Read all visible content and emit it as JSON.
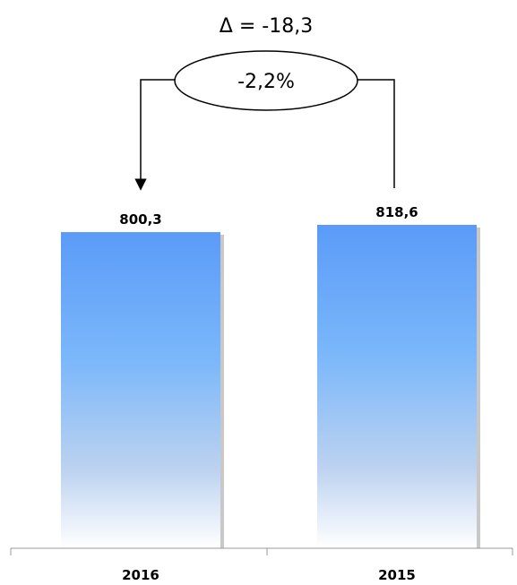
{
  "chart_data": {
    "type": "bar",
    "categories": [
      "2016",
      "2015"
    ],
    "values": [
      800.3,
      818.6
    ],
    "data_labels": [
      "800,3",
      "818,6"
    ],
    "ylim": [
      0,
      818.6
    ],
    "grid": false,
    "colors": {
      "bar_top": "#5b9bf8",
      "bar_mid": "#7ab7fa",
      "bar_bottom": "#ffffff",
      "shadow": "#c8c8c8",
      "axis": "#9a9a9a"
    },
    "annotation": {
      "delta_label": "Δ = -18,3",
      "percent_label": "-2,2%",
      "arrow_from": "2015",
      "arrow_to": "2016"
    }
  }
}
